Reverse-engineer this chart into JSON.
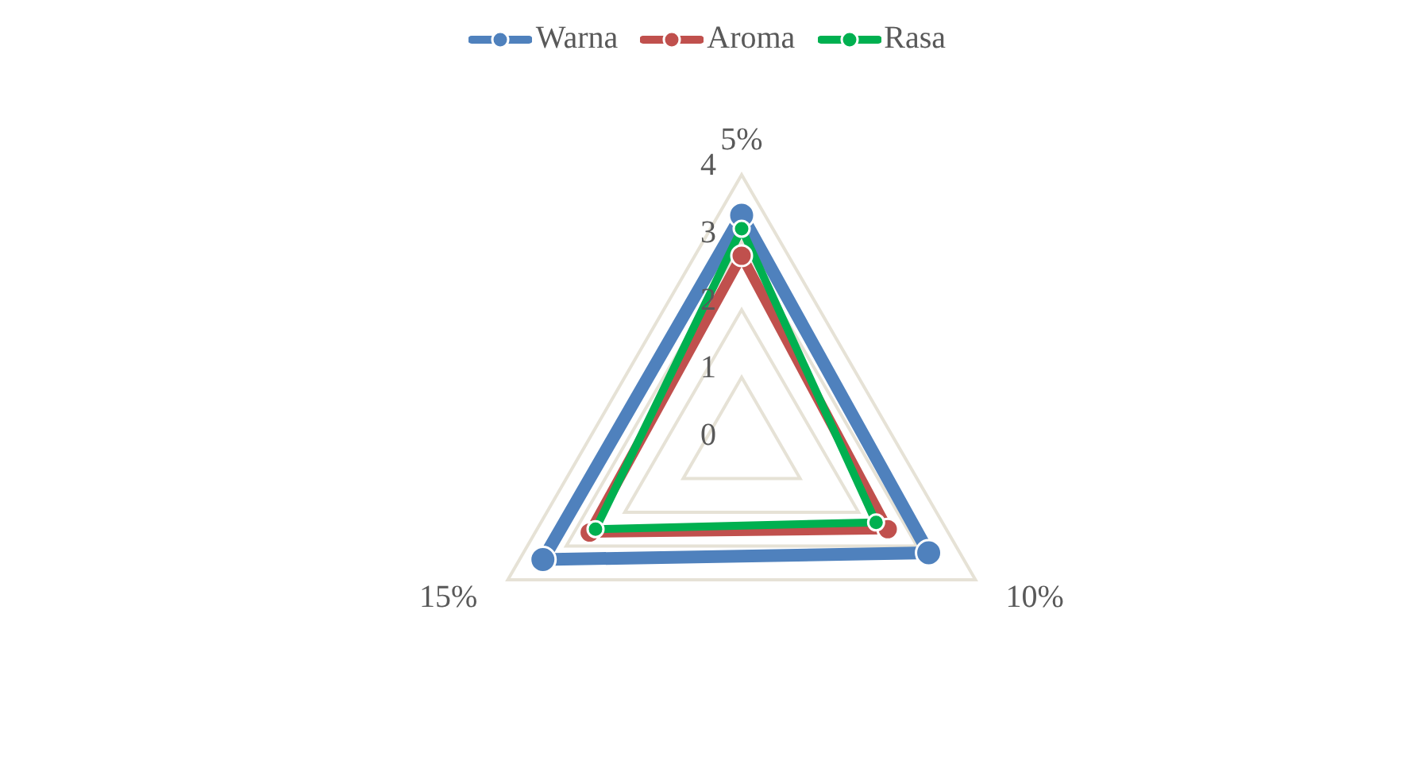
{
  "chart_data": {
    "type": "radar",
    "categories": [
      "5%",
      "10%",
      "15%"
    ],
    "series": [
      {
        "name": "Warna",
        "color": "#4f81bd",
        "values": [
          3.4,
          3.2,
          3.4
        ]
      },
      {
        "name": "Aroma",
        "color": "#c0504d",
        "values": [
          2.8,
          2.5,
          2.6
        ]
      },
      {
        "name": "Rasa",
        "color": "#00b050",
        "values": [
          3.2,
          2.3,
          2.5
        ]
      }
    ],
    "ylim": [
      0,
      4
    ],
    "yticks": [
      0,
      1,
      2,
      3,
      4
    ],
    "grid": true,
    "legend": "top",
    "marker": "circle"
  }
}
